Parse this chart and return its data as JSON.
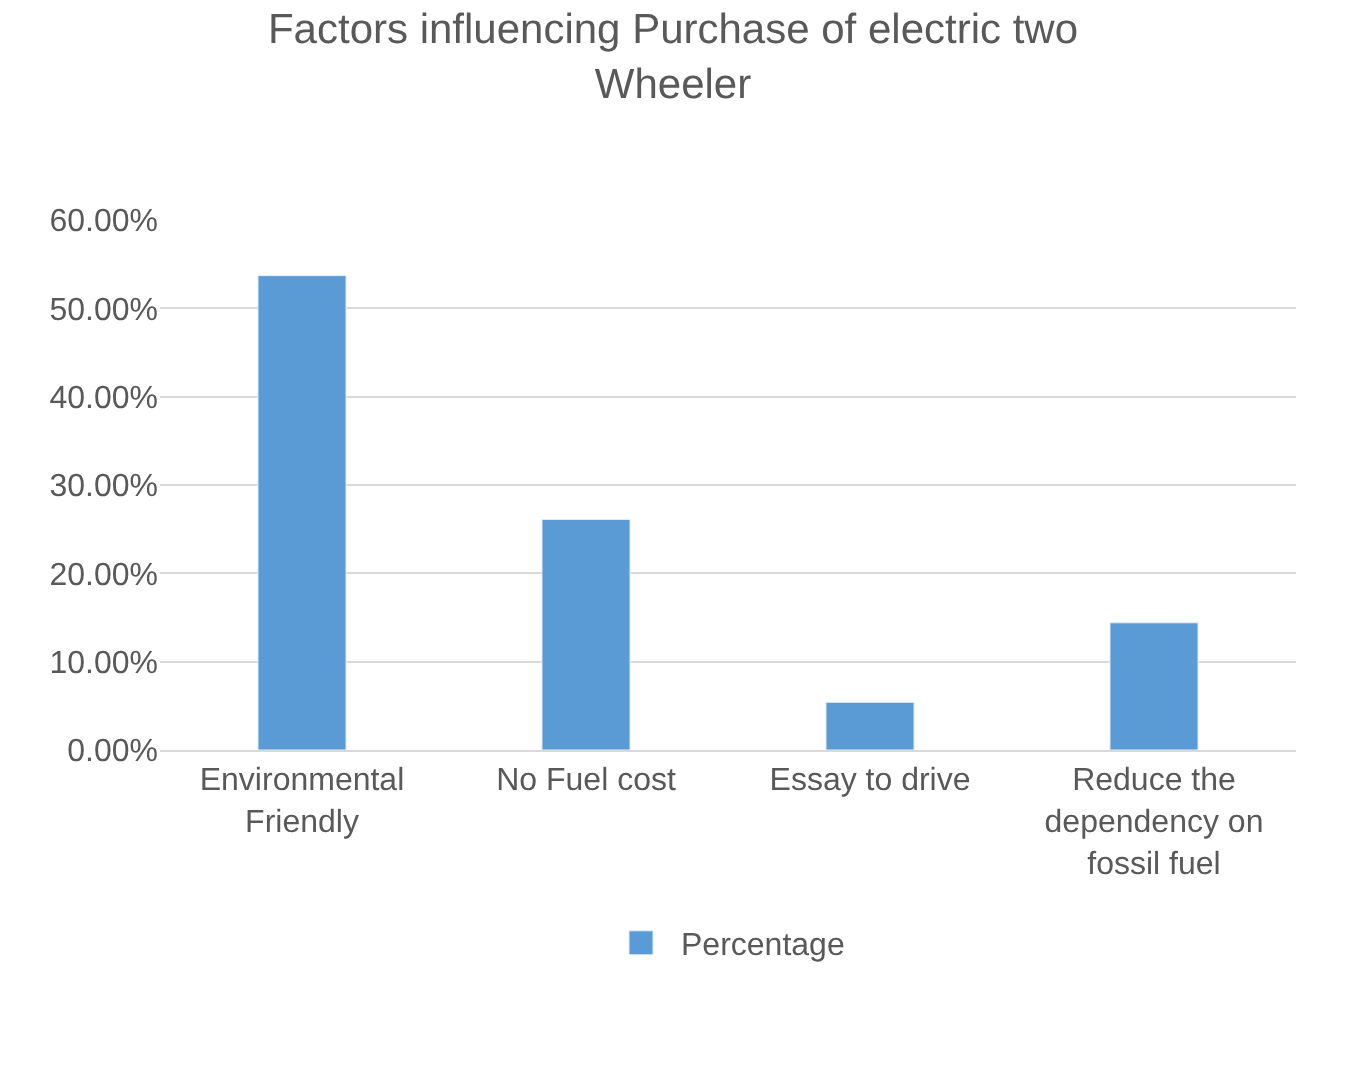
{
  "chart_data": {
    "type": "bar",
    "title": "Factors influencing Purchase of electric two Wheeler",
    "categories": [
      "Environmental Friendly",
      "No Fuel cost",
      "Essay to drive",
      "Reduce the dependency on fossil fuel"
    ],
    "series": [
      {
        "name": "Percentage",
        "color": "#5b9bd5",
        "values": [
          53.7,
          26.1,
          5.4,
          14.4
        ]
      }
    ],
    "ylim": [
      0,
      60
    ],
    "yticks": [
      {
        "value": 0,
        "label": "0.00%"
      },
      {
        "value": 10,
        "label": "10.00%"
      },
      {
        "value": 20,
        "label": "20.00%"
      },
      {
        "value": 30,
        "label": "30.00%"
      },
      {
        "value": 40,
        "label": "40.00%"
      },
      {
        "value": 50,
        "label": "50.00%"
      },
      {
        "value": 60,
        "label": "60.00%"
      }
    ],
    "grid": "y",
    "legend": "bottom"
  }
}
